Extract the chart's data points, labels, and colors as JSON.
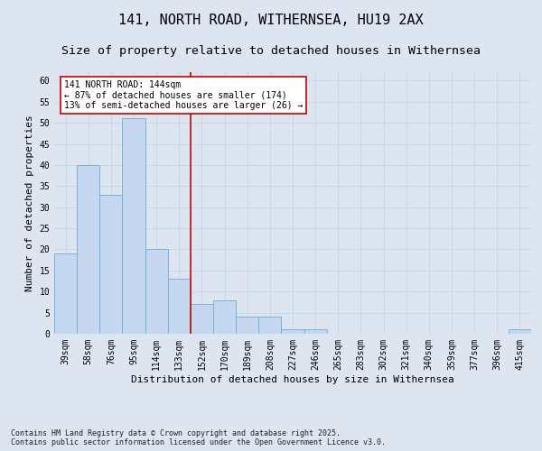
{
  "title1": "141, NORTH ROAD, WITHERNSEA, HU19 2AX",
  "title2": "Size of property relative to detached houses in Withernsea",
  "xlabel": "Distribution of detached houses by size in Withernsea",
  "ylabel": "Number of detached properties",
  "categories": [
    "39sqm",
    "58sqm",
    "76sqm",
    "95sqm",
    "114sqm",
    "133sqm",
    "152sqm",
    "170sqm",
    "189sqm",
    "208sqm",
    "227sqm",
    "246sqm",
    "265sqm",
    "283sqm",
    "302sqm",
    "321sqm",
    "340sqm",
    "359sqm",
    "377sqm",
    "396sqm",
    "415sqm"
  ],
  "values": [
    19,
    40,
    33,
    51,
    20,
    13,
    7,
    8,
    4,
    4,
    1,
    1,
    0,
    0,
    0,
    0,
    0,
    0,
    0,
    0,
    1
  ],
  "bar_color": "#c5d8f0",
  "bar_edge_color": "#6aaed6",
  "grid_color": "#ccd6e8",
  "background_color": "#dde6f0",
  "vline_x_index": 5.5,
  "vline_color": "#cc0000",
  "annotation_text": "141 NORTH ROAD: 144sqm\n← 87% of detached houses are smaller (174)\n13% of semi-detached houses are larger (26) →",
  "annotation_box_color": "#ffffff",
  "annotation_box_edge": "#cc0000",
  "ylim": [
    0,
    62
  ],
  "yticks": [
    0,
    5,
    10,
    15,
    20,
    25,
    30,
    35,
    40,
    45,
    50,
    55,
    60
  ],
  "footnote": "Contains HM Land Registry data © Crown copyright and database right 2025.\nContains public sector information licensed under the Open Government Licence v3.0.",
  "title_fontsize": 11,
  "subtitle_fontsize": 9.5,
  "axis_label_fontsize": 8,
  "tick_fontsize": 7,
  "annot_fontsize": 7,
  "footnote_fontsize": 6
}
